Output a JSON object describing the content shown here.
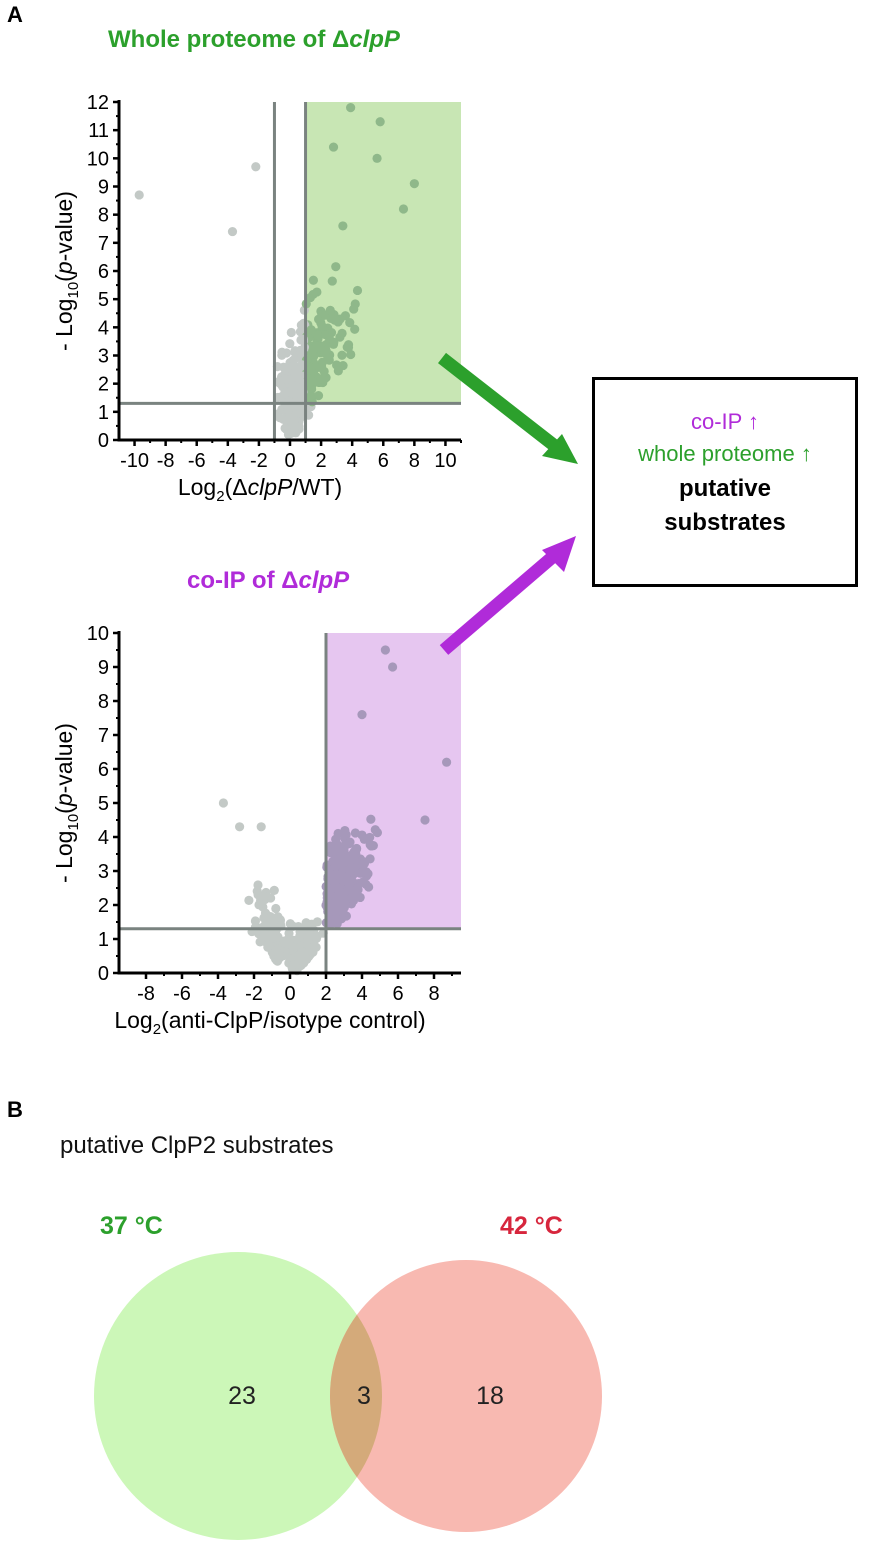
{
  "panel_a": {
    "letter": "A"
  },
  "panel_b": {
    "letter": "B"
  },
  "colors": {
    "green": "#2ca02c",
    "green_shade": "#c8e6b4",
    "green_point": "#8fb88a",
    "purple": "#b02bd9",
    "purple_shade": "#e6c6f0",
    "purple_point": "#a698ba",
    "grey_point": "#c3c9c6",
    "line": "#7a8380",
    "red": "#d7263d",
    "venn_green": "#ccf7b8",
    "venn_red": "#f8b9b1",
    "venn_overlap": "#d4aa7a"
  },
  "callout": {
    "line1": "co-IP ↑",
    "line2": "whole proteome ↑",
    "line3a": "putative",
    "line3b": "substrates"
  },
  "chart_data": [
    {
      "type": "scatter",
      "title_prefix": "Whole proteome of Δ",
      "title_italic": "clpP",
      "xlabel": {
        "pre": "Log",
        "sub": "2",
        "mid": "(Δ",
        "it": "clpP",
        "post": "/WT)"
      },
      "ylabel": {
        "pre": "- Log",
        "sub": "10",
        "mid": "(",
        "it": "p",
        "post": "-value)"
      },
      "xlim": [
        -11,
        11
      ],
      "ylim": [
        0,
        12
      ],
      "xticks": [
        -10,
        -8,
        -6,
        -4,
        -2,
        0,
        2,
        4,
        6,
        8,
        10
      ],
      "yticks": [
        0,
        1,
        2,
        3,
        4,
        5,
        6,
        7,
        8,
        9,
        10,
        11,
        12
      ],
      "thresholds": {
        "x": [
          -1,
          1
        ],
        "y": 1.3
      },
      "highlight": {
        "xmin": 1,
        "xmax": 11,
        "ymin": 1.3,
        "ymax": 12
      },
      "outliers": [
        [
          -9.7,
          8.7
        ],
        [
          -2.2,
          9.7
        ],
        [
          3.9,
          11.8
        ],
        [
          5.8,
          11.3
        ],
        [
          8.0,
          9.1
        ],
        [
          7.3,
          8.2
        ],
        [
          2.8,
          10.4
        ],
        [
          5.6,
          10.0
        ],
        [
          3.4,
          7.6
        ],
        [
          -3.7,
          7.4
        ]
      ]
    },
    {
      "type": "scatter",
      "title_prefix": "co-IP of Δ",
      "title_italic": "clpP",
      "xlabel": {
        "pre": "Log",
        "sub": "2",
        "mid": "(anti-ClpP/isotype control)",
        "it": "",
        "post": ""
      },
      "ylabel": {
        "pre": "- Log",
        "sub": "10",
        "mid": "(",
        "it": "p",
        "post": "-value)"
      },
      "xlim": [
        -9.5,
        9.5
      ],
      "ylim": [
        0,
        10
      ],
      "xticks": [
        -8,
        -6,
        -4,
        -2,
        0,
        2,
        4,
        6,
        8
      ],
      "yticks": [
        0,
        1,
        2,
        3,
        4,
        5,
        6,
        7,
        8,
        9,
        10
      ],
      "thresholds": {
        "x": [
          2
        ],
        "y": 1.3
      },
      "highlight": {
        "xmin": 2,
        "xmax": 9.5,
        "ymin": 1.3,
        "ymax": 10
      },
      "outliers": [
        [
          -3.7,
          5.0
        ],
        [
          5.3,
          9.5
        ],
        [
          5.7,
          9.0
        ],
        [
          8.7,
          6.2
        ],
        [
          7.5,
          4.5
        ],
        [
          4.0,
          7.6
        ],
        [
          -2.8,
          4.3
        ],
        [
          -1.6,
          4.3
        ]
      ]
    },
    {
      "type": "venn",
      "title": "putative ClpP2 substrates",
      "sets": [
        {
          "name": "37 °C",
          "only": "23"
        },
        {
          "name": "42 °C",
          "only": "18"
        }
      ],
      "intersection": "3"
    }
  ]
}
